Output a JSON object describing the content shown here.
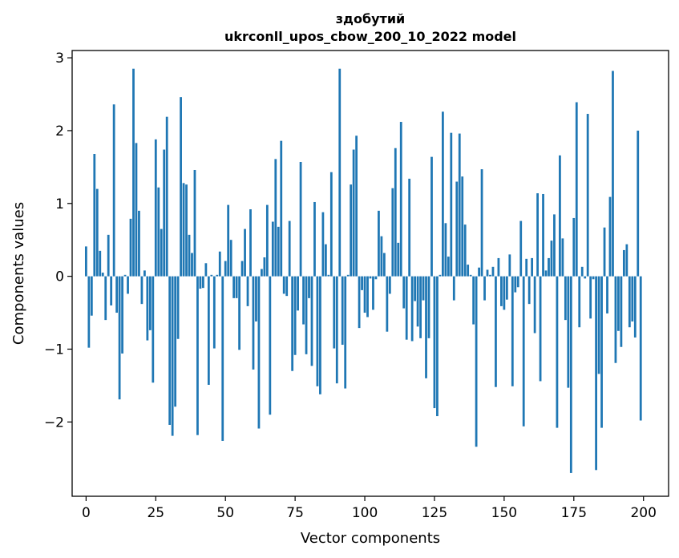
{
  "chart_data": {
    "type": "bar",
    "title": [
      "здобутий",
      "ukrconll_upos_cbow_200_10_2022 model"
    ],
    "xlabel": "Vector components",
    "ylabel": "Components values",
    "xlim": [
      -5,
      209
    ],
    "ylim": [
      -3.02,
      3.1
    ],
    "xticks": [
      0,
      25,
      50,
      75,
      100,
      125,
      150,
      175,
      200
    ],
    "yticks": [
      -2,
      -1,
      0,
      1,
      2,
      3
    ],
    "xtick_labels": [
      "0",
      "25",
      "50",
      "75",
      "100",
      "125",
      "150",
      "175",
      "200"
    ],
    "ytick_labels": [
      "−2",
      "−1",
      "0",
      "1",
      "2",
      "3"
    ],
    "grid": false,
    "bar_color": "#1f77b4",
    "x": [
      0,
      1,
      2,
      3,
      4,
      5,
      6,
      7,
      8,
      9,
      10,
      11,
      12,
      13,
      14,
      15,
      16,
      17,
      18,
      19,
      20,
      21,
      22,
      23,
      24,
      25,
      26,
      27,
      28,
      29,
      30,
      31,
      32,
      33,
      34,
      35,
      36,
      37,
      38,
      39,
      40,
      41,
      42,
      43,
      44,
      45,
      46,
      47,
      48,
      49,
      50,
      51,
      52,
      53,
      54,
      55,
      56,
      57,
      58,
      59,
      60,
      61,
      62,
      63,
      64,
      65,
      66,
      67,
      68,
      69,
      70,
      71,
      72,
      73,
      74,
      75,
      76,
      77,
      78,
      79,
      80,
      81,
      82,
      83,
      84,
      85,
      86,
      87,
      88,
      89,
      90,
      91,
      92,
      93,
      94,
      95,
      96,
      97,
      98,
      99,
      100,
      101,
      102,
      103,
      104,
      105,
      106,
      107,
      108,
      109,
      110,
      111,
      112,
      113,
      114,
      115,
      116,
      117,
      118,
      119,
      120,
      121,
      122,
      123,
      124,
      125,
      126,
      127,
      128,
      129,
      130,
      131,
      132,
      133,
      134,
      135,
      136,
      137,
      138,
      139,
      140,
      141,
      142,
      143,
      144,
      145,
      146,
      147,
      148,
      149,
      150,
      151,
      152,
      153,
      154,
      155,
      156,
      157,
      158,
      159,
      160,
      161,
      162,
      163,
      164,
      165,
      166,
      167,
      168,
      169,
      170,
      171,
      172,
      173,
      174,
      175,
      176,
      177,
      178,
      179,
      180,
      181,
      182,
      183,
      184,
      185,
      186,
      187,
      188,
      189,
      190,
      191,
      192,
      193,
      194,
      195,
      196,
      197,
      198,
      199
    ],
    "values": [
      0.41,
      -0.98,
      -0.54,
      1.68,
      1.2,
      0.35,
      0.05,
      -0.6,
      0.57,
      -0.4,
      2.36,
      -0.5,
      -1.69,
      -1.06,
      0.02,
      -0.24,
      0.79,
      2.85,
      1.83,
      0.9,
      -0.38,
      0.08,
      -0.88,
      -0.74,
      -1.46,
      1.88,
      1.22,
      0.65,
      1.74,
      2.19,
      -2.04,
      -2.19,
      -1.79,
      -0.86,
      2.46,
      1.28,
      1.26,
      0.57,
      0.32,
      1.46,
      -2.18,
      -0.17,
      -0.16,
      0.18,
      -1.49,
      0.02,
      -0.99,
      0.02,
      0.34,
      -2.26,
      0.21,
      0.98,
      0.5,
      -0.3,
      -0.3,
      -1.01,
      0.21,
      0.65,
      -0.41,
      0.92,
      -1.28,
      -0.62,
      -2.09,
      0.1,
      0.26,
      0.98,
      -1.9,
      0.75,
      1.61,
      0.68,
      1.86,
      -0.24,
      -0.27,
      0.76,
      -1.3,
      -1.08,
      -0.47,
      1.57,
      -0.66,
      -1.07,
      -0.3,
      -1.23,
      1.02,
      -1.51,
      -1.62,
      0.88,
      0.44,
      0.02,
      1.43,
      -0.99,
      -1.47,
      2.85,
      -0.94,
      -1.54,
      0.02,
      1.26,
      1.74,
      1.93,
      -0.71,
      -0.19,
      -0.5,
      -0.56,
      -0.03,
      -0.46,
      -0.04,
      0.9,
      0.55,
      0.32,
      -0.76,
      -0.24,
      1.21,
      1.76,
      0.46,
      2.12,
      -0.44,
      -0.87,
      1.34,
      -0.89,
      -0.34,
      -0.69,
      -0.85,
      -0.33,
      -1.4,
      -0.85,
      1.64,
      -1.81,
      -1.92,
      0.02,
      2.26,
      0.73,
      0.27,
      1.97,
      -0.33,
      1.3,
      1.96,
      1.37,
      0.71,
      0.16,
      0.02,
      -0.66,
      -2.34,
      0.12,
      1.47,
      -0.33,
      0.09,
      0.02,
      0.13,
      -1.52,
      0.25,
      -0.41,
      -0.46,
      -0.32,
      0.3,
      -1.51,
      -0.22,
      -0.15,
      0.76,
      -2.06,
      0.24,
      -0.38,
      0.25,
      -0.78,
      1.14,
      -1.44,
      1.13,
      0.08,
      0.25,
      0.49,
      0.85,
      -2.08,
      1.66,
      0.52,
      -0.6,
      -1.53,
      -2.7,
      0.8,
      2.39,
      -0.7,
      0.13,
      -0.03,
      2.23,
      -0.58,
      -0.04,
      -2.66,
      -1.34,
      -2.08,
      0.67,
      -0.51,
      1.09,
      2.82,
      -1.19,
      -0.75,
      -0.97,
      0.36,
      0.44,
      -0.7,
      -0.62,
      -0.84,
      2.0,
      -1.98
    ]
  }
}
